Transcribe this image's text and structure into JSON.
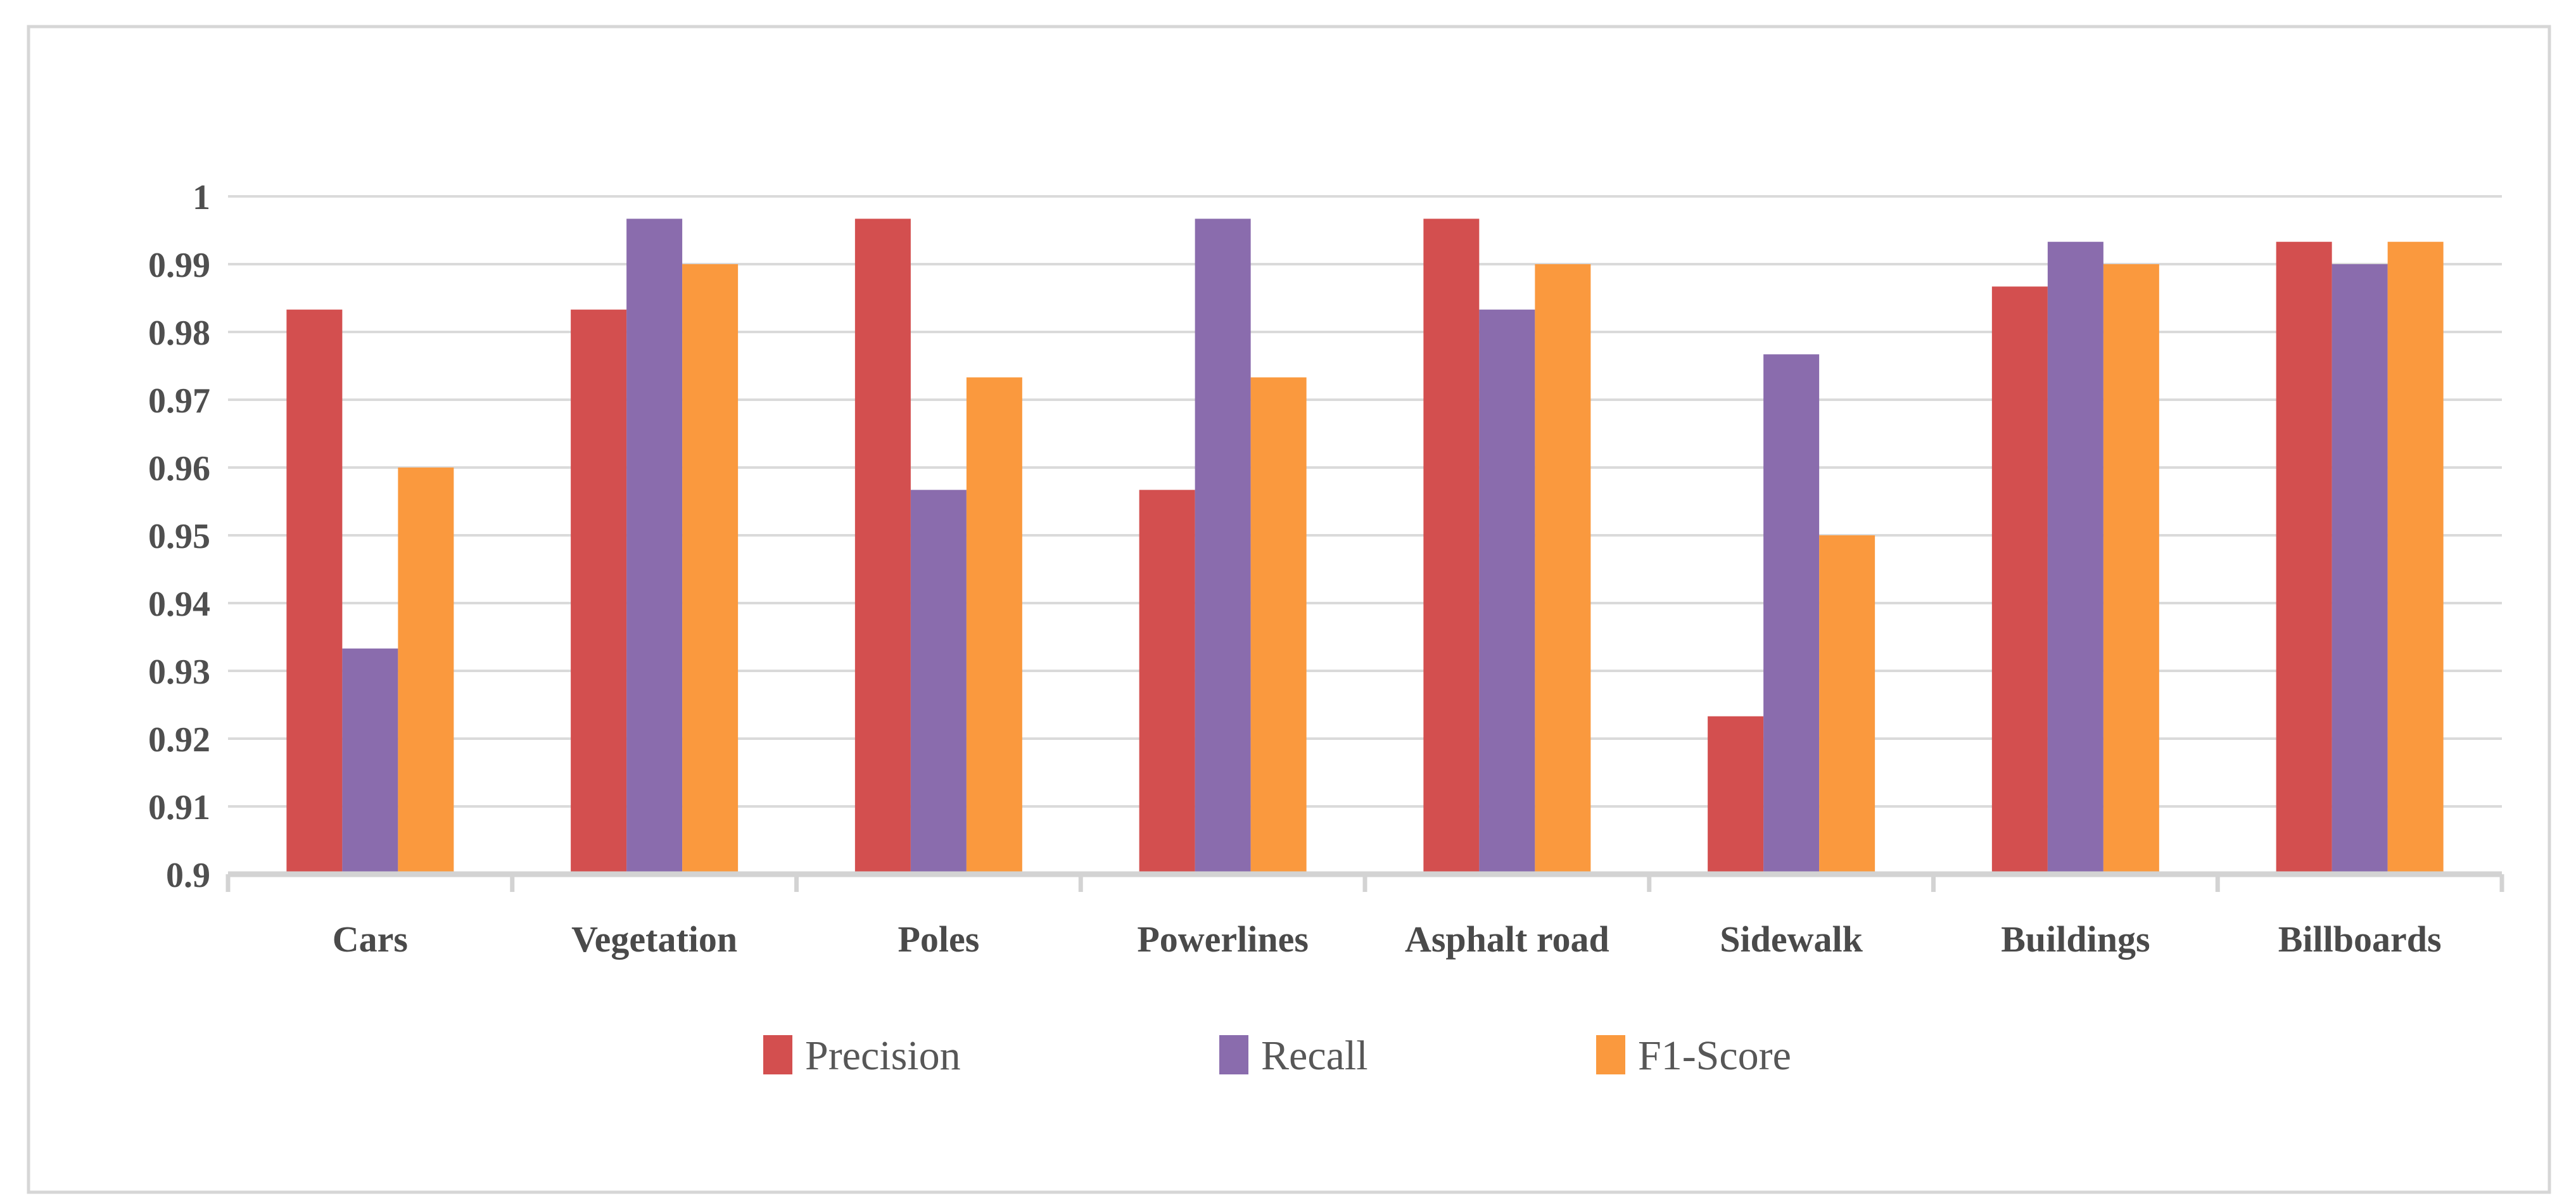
{
  "figure": {
    "background": "#FFFFFF",
    "border_color": "#D6D6D6"
  },
  "chart_data": {
    "type": "bar",
    "title": "",
    "xlabel": "",
    "ylabel": "",
    "categories": [
      "Cars",
      "Vegetation",
      "Poles",
      "Powerlines",
      "Asphalt road",
      "Sidewalk",
      "Buildings",
      "Billboards"
    ],
    "series": [
      {
        "name": "Precision",
        "color": "#D34F4F",
        "values": [
          0.9833,
          0.9833,
          0.9967,
          0.9567,
          0.9967,
          0.9233,
          0.9867,
          0.9933
        ]
      },
      {
        "name": "Recall",
        "color": "#8A6CAD",
        "values": [
          0.9333,
          0.9967,
          0.9567,
          0.9967,
          0.9833,
          0.9767,
          0.9933,
          0.99
        ]
      },
      {
        "name": "F1-Score",
        "color": "#FA993E",
        "values": [
          0.96,
          0.99,
          0.9733,
          0.9733,
          0.99,
          0.95,
          0.99,
          0.9933
        ]
      }
    ],
    "ylim": [
      0.9,
      1.0
    ],
    "y_tick_values": [
      1.0,
      0.99,
      0.98,
      0.97,
      0.96,
      0.95,
      0.94,
      0.93,
      0.92,
      0.91,
      0.9
    ],
    "y_tick_labels": [
      "1",
      "0.99",
      "0.98",
      "0.97",
      "0.96",
      "0.95",
      "0.94",
      "0.93",
      "0.92",
      "0.91",
      "0.9"
    ],
    "grid": true,
    "legend_position": "bottom-center",
    "styles": {
      "grid_color": "#DADADA",
      "axis_color": "#D3D3D3",
      "tick_label_color": "#4F4F4F",
      "category_label_color": "#4A4A4A",
      "legend_text_color": "#575757"
    }
  }
}
